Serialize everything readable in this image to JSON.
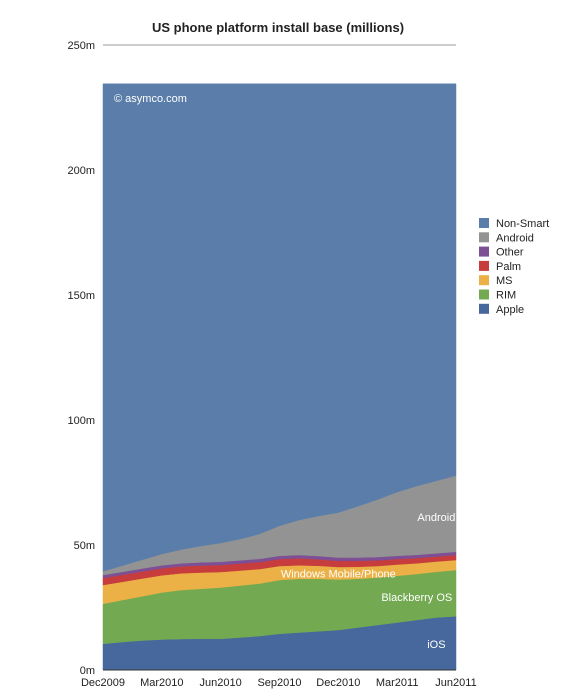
{
  "chart_data": {
    "type": "area",
    "stacked": true,
    "title": "US phone platform install base (millions)",
    "watermark": "© asymco.com",
    "xlabel": "",
    "ylabel": "",
    "ylim": [
      0,
      250
    ],
    "yticks": [
      0,
      50,
      100,
      150,
      200,
      250
    ],
    "ytick_labels": [
      "0m",
      "50m",
      "100m",
      "150m",
      "200m",
      "250m"
    ],
    "x": [
      "Dec2009",
      "Jan2010",
      "Feb2010",
      "Mar2010",
      "Apr2010",
      "May2010",
      "Jun2010",
      "Jul2010",
      "Aug2010",
      "Sep2010",
      "Oct2010",
      "Nov2010",
      "Dec2010",
      "Jan2011",
      "Feb2011",
      "Mar2011",
      "Apr2011",
      "May2011",
      "Jun2011"
    ],
    "xtick_labels": [
      "Dec2009",
      "Mar2010",
      "Jun2010",
      "Sep2010",
      "Dec2010",
      "Mar2011",
      "Jun2011"
    ],
    "xtick_indices": [
      0,
      3,
      6,
      9,
      12,
      15,
      18
    ],
    "grid": false,
    "legend": "right",
    "series": [
      {
        "name": "Apple",
        "color": "#46689c",
        "values": [
          10.5,
          11.2,
          11.8,
          12.2,
          12.4,
          12.5,
          12.5,
          13.0,
          13.6,
          14.5,
          15.0,
          15.5,
          16.0,
          17.0,
          18.0,
          19.0,
          20.0,
          21.0,
          21.5
        ]
      },
      {
        "name": "RIM",
        "color": "#72a951",
        "values": [
          16.0,
          16.8,
          17.7,
          18.8,
          19.6,
          20.0,
          20.5,
          20.8,
          21.0,
          21.5,
          21.5,
          21.0,
          20.2,
          19.5,
          19.0,
          18.7,
          18.4,
          18.3,
          18.5
        ]
      },
      {
        "name": "MS",
        "color": "#ebb146",
        "values": [
          7.5,
          7.3,
          7.1,
          6.9,
          6.7,
          6.5,
          6.2,
          6.0,
          5.8,
          5.6,
          5.4,
          5.2,
          5.0,
          4.8,
          4.6,
          4.5,
          4.3,
          4.1,
          4.0
        ]
      },
      {
        "name": "Palm",
        "color": "#c73c3c",
        "values": [
          2.8,
          2.8,
          2.8,
          2.8,
          2.8,
          2.8,
          2.8,
          2.8,
          2.8,
          2.8,
          2.8,
          2.6,
          2.5,
          2.4,
          2.3,
          2.2,
          2.1,
          2.0,
          2.0
        ]
      },
      {
        "name": "Other",
        "color": "#7d4f94",
        "values": [
          1.2,
          1.2,
          1.2,
          1.2,
          1.2,
          1.3,
          1.3,
          1.3,
          1.3,
          1.3,
          1.3,
          1.3,
          1.3,
          1.3,
          1.3,
          1.3,
          1.3,
          1.3,
          1.3
        ]
      },
      {
        "name": "Android",
        "color": "#939393",
        "values": [
          1.5,
          2.5,
          3.5,
          4.5,
          5.5,
          6.5,
          7.5,
          8.5,
          10.0,
          12.0,
          14.0,
          16.0,
          18.0,
          20.5,
          23.0,
          25.5,
          27.5,
          29.0,
          30.5
        ]
      },
      {
        "name": "Non-Smart",
        "color": "#5a7ea9",
        "values": [
          195.0,
          192.7,
          190.4,
          188.1,
          186.3,
          184.9,
          183.7,
          182.1,
          180.0,
          176.8,
          174.5,
          172.9,
          171.5,
          169.0,
          166.3,
          163.3,
          160.9,
          158.8,
          156.7
        ]
      }
    ],
    "annotations": [
      {
        "text": "Android",
        "series": "Android",
        "x_index": 17
      },
      {
        "text": "Windows Mobile/Phone",
        "series": "MS",
        "x_index": 12
      },
      {
        "text": "Blackberry OS",
        "series": "RIM",
        "x_index": 16
      },
      {
        "text": "iOS",
        "series": "Apple",
        "x_index": 17
      }
    ],
    "legend_order": [
      "Non-Smart",
      "Android",
      "Other",
      "Palm",
      "MS",
      "RIM",
      "Apple"
    ]
  }
}
